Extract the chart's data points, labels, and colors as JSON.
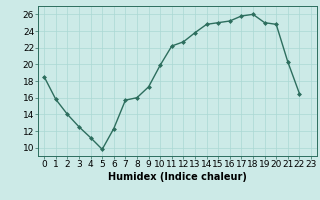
{
  "x": [
    0,
    1,
    2,
    3,
    4,
    5,
    6,
    7,
    8,
    9,
    10,
    11,
    12,
    13,
    14,
    15,
    16,
    17,
    18,
    19,
    20,
    21,
    22,
    23
  ],
  "y": [
    18.5,
    15.8,
    14.0,
    12.5,
    11.2,
    9.8,
    12.3,
    15.7,
    16.0,
    17.3,
    19.9,
    22.2,
    22.7,
    23.8,
    24.8,
    25.0,
    25.2,
    25.8,
    26.0,
    25.0,
    24.8,
    20.3,
    16.5,
    null
  ],
  "xlabel": "Humidex (Indice chaleur)",
  "ylim": [
    9,
    27
  ],
  "xlim": [
    -0.5,
    23.5
  ],
  "yticks": [
    10,
    12,
    14,
    16,
    18,
    20,
    22,
    24,
    26
  ],
  "xticks": [
    0,
    1,
    2,
    3,
    4,
    5,
    6,
    7,
    8,
    9,
    10,
    11,
    12,
    13,
    14,
    15,
    16,
    17,
    18,
    19,
    20,
    21,
    22,
    23
  ],
  "line_color": "#2d6e5e",
  "marker": "D",
  "marker_size": 2,
  "bg_color": "#cceae7",
  "grid_color": "#aad8d4",
  "line_width": 1.0,
  "label_fontsize": 7,
  "tick_fontsize": 6.5
}
